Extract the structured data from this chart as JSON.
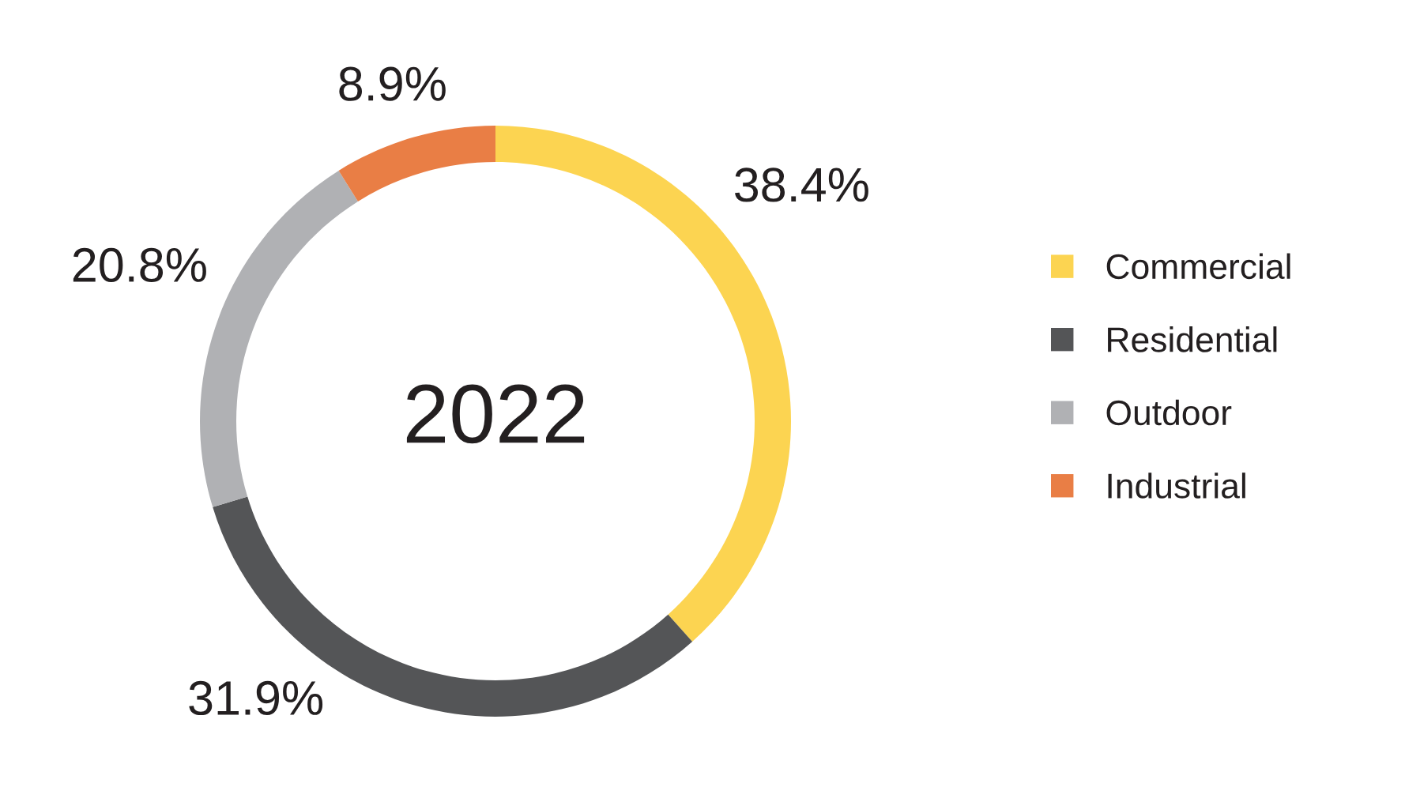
{
  "chart_data": {
    "type": "donut",
    "title": "2022",
    "categories": [
      "Commercial",
      "Residential",
      "Outdoor",
      "Industrial"
    ],
    "values": [
      38.4,
      31.9,
      20.8,
      8.9
    ],
    "colors": [
      "#fcd451",
      "#545557",
      "#b0b1b4",
      "#e97e45"
    ],
    "value_labels": [
      "38.4%",
      "31.9%",
      "20.8%",
      "8.9%"
    ],
    "legend": "right"
  }
}
